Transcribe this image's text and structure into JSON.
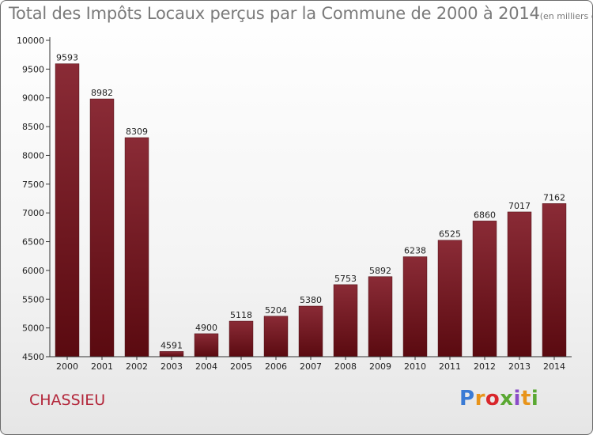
{
  "title": {
    "main": "Total des Impôts Locaux perçus par la Commune de 2000 à 2014",
    "unit": "(en milliers d'€)"
  },
  "commune": "CHASSIEU",
  "logo": {
    "parts": [
      "P",
      "r",
      "o",
      "x",
      "i",
      "t",
      "i"
    ]
  },
  "colors": {
    "bar_top": "#8a2b36",
    "bar_bottom": "#5a0a10",
    "axis": "#333333",
    "grid": "#cfcfcf",
    "label": "#222222"
  },
  "chart_data": {
    "type": "bar",
    "title": "Total des Impôts Locaux perçus par la Commune de 2000 à 2014",
    "xlabel": "",
    "ylabel": "",
    "categories": [
      "2000",
      "2001",
      "2002",
      "2003",
      "2004",
      "2005",
      "2006",
      "2007",
      "2008",
      "2009",
      "2010",
      "2011",
      "2012",
      "2013",
      "2014"
    ],
    "values": [
      9593,
      8982,
      8309,
      4591,
      4900,
      5118,
      5204,
      5380,
      5753,
      5892,
      6238,
      6525,
      6860,
      7017,
      7162
    ],
    "ylim": [
      4500,
      10000
    ],
    "yticks": [
      4500,
      5000,
      5500,
      6000,
      6500,
      7000,
      7500,
      8000,
      8500,
      9000,
      9500,
      10000
    ],
    "grid": false,
    "data_labels": true
  }
}
